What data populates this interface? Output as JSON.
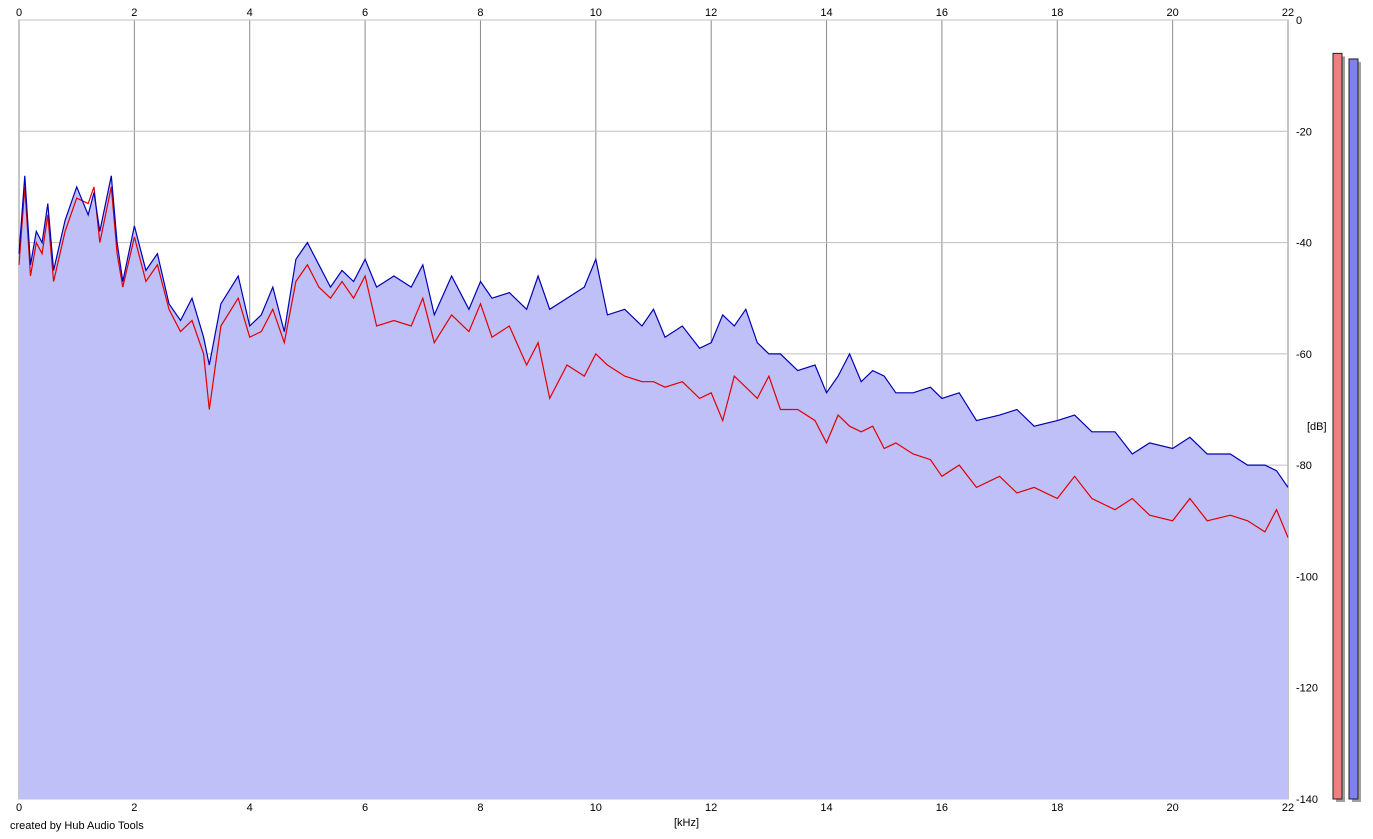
{
  "credit": "created by Hub Audio Tools",
  "chart_data": {
    "type": "area",
    "xlabel": "[kHz]",
    "ylabel": "[dB]",
    "xlim": [
      0,
      22
    ],
    "ylim": [
      -140,
      0
    ],
    "x_ticks": [
      0,
      2,
      4,
      6,
      8,
      10,
      12,
      14,
      16,
      18,
      20,
      22
    ],
    "y_ticks": [
      0,
      -20,
      -40,
      -60,
      -80,
      -100,
      -120,
      -140
    ],
    "grid": true,
    "series": [
      {
        "color": "#0000b4",
        "fill": "#c0c0f8",
        "x": [
          0,
          0.1,
          0.2,
          0.3,
          0.4,
          0.5,
          0.6,
          0.8,
          1.0,
          1.2,
          1.3,
          1.4,
          1.6,
          1.7,
          1.8,
          2.0,
          2.2,
          2.4,
          2.6,
          2.8,
          3.0,
          3.2,
          3.3,
          3.5,
          3.8,
          4.0,
          4.2,
          4.4,
          4.6,
          4.8,
          5.0,
          5.2,
          5.4,
          5.6,
          5.8,
          6.0,
          6.2,
          6.5,
          6.8,
          7.0,
          7.2,
          7.5,
          7.8,
          8.0,
          8.2,
          8.5,
          8.8,
          9.0,
          9.2,
          9.5,
          9.8,
          10.0,
          10.2,
          10.5,
          10.8,
          11.0,
          11.2,
          11.5,
          11.8,
          12.0,
          12.2,
          12.4,
          12.6,
          12.8,
          13.0,
          13.2,
          13.5,
          13.8,
          14.0,
          14.2,
          14.4,
          14.6,
          14.8,
          15.0,
          15.2,
          15.5,
          15.8,
          16.0,
          16.3,
          16.6,
          17.0,
          17.3,
          17.6,
          18.0,
          18.3,
          18.6,
          19.0,
          19.3,
          19.6,
          20.0,
          20.3,
          20.6,
          21.0,
          21.3,
          21.6,
          21.8,
          22.0
        ],
        "values": [
          -42,
          -28,
          -44,
          -38,
          -40,
          -33,
          -45,
          -36,
          -30,
          -35,
          -31,
          -38,
          -28,
          -40,
          -47,
          -37,
          -45,
          -42,
          -51,
          -54,
          -50,
          -57,
          -62,
          -51,
          -46,
          -55,
          -53,
          -48,
          -56,
          -43,
          -40,
          -44,
          -48,
          -45,
          -47,
          -43,
          -48,
          -46,
          -48,
          -44,
          -53,
          -46,
          -52,
          -47,
          -50,
          -49,
          -52,
          -46,
          -52,
          -50,
          -48,
          -43,
          -53,
          -52,
          -55,
          -52,
          -57,
          -55,
          -59,
          -58,
          -53,
          -55,
          -52,
          -58,
          -60,
          -60,
          -63,
          -62,
          -67,
          -64,
          -60,
          -65,
          -63,
          -64,
          -67,
          -67,
          -66,
          -68,
          -67,
          -72,
          -71,
          -70,
          -73,
          -72,
          -71,
          -74,
          -74,
          -78,
          -76,
          -77,
          -75,
          -78,
          -78,
          -80,
          -80,
          -81,
          -84
        ]
      },
      {
        "color": "#e00000",
        "x": [
          0,
          0.1,
          0.2,
          0.3,
          0.4,
          0.5,
          0.6,
          0.8,
          1.0,
          1.2,
          1.3,
          1.4,
          1.6,
          1.7,
          1.8,
          2.0,
          2.2,
          2.4,
          2.6,
          2.8,
          3.0,
          3.2,
          3.3,
          3.5,
          3.8,
          4.0,
          4.2,
          4.4,
          4.6,
          4.8,
          5.0,
          5.2,
          5.4,
          5.6,
          5.8,
          6.0,
          6.2,
          6.5,
          6.8,
          7.0,
          7.2,
          7.5,
          7.8,
          8.0,
          8.2,
          8.5,
          8.8,
          9.0,
          9.2,
          9.5,
          9.8,
          10.0,
          10.2,
          10.5,
          10.8,
          11.0,
          11.2,
          11.5,
          11.8,
          12.0,
          12.2,
          12.4,
          12.6,
          12.8,
          13.0,
          13.2,
          13.5,
          13.8,
          14.0,
          14.2,
          14.4,
          14.6,
          14.8,
          15.0,
          15.2,
          15.5,
          15.8,
          16.0,
          16.3,
          16.6,
          17.0,
          17.3,
          17.6,
          18.0,
          18.3,
          18.6,
          19.0,
          19.3,
          19.6,
          20.0,
          20.3,
          20.6,
          21.0,
          21.3,
          21.6,
          21.8,
          22.0
        ],
        "values": [
          -44,
          -30,
          -46,
          -40,
          -42,
          -35,
          -47,
          -38,
          -32,
          -33,
          -30,
          -40,
          -30,
          -42,
          -48,
          -39,
          -47,
          -44,
          -52,
          -56,
          -54,
          -60,
          -70,
          -55,
          -50,
          -57,
          -56,
          -52,
          -58,
          -47,
          -44,
          -48,
          -50,
          -47,
          -50,
          -46,
          -55,
          -54,
          -55,
          -50,
          -58,
          -53,
          -56,
          -51,
          -57,
          -55,
          -62,
          -58,
          -68,
          -62,
          -64,
          -60,
          -62,
          -64,
          -65,
          -65,
          -66,
          -65,
          -68,
          -67,
          -72,
          -64,
          -66,
          -68,
          -64,
          -70,
          -70,
          -72,
          -76,
          -71,
          -73,
          -74,
          -73,
          -77,
          -76,
          -78,
          -79,
          -82,
          -80,
          -84,
          -82,
          -85,
          -84,
          -86,
          -82,
          -86,
          -88,
          -86,
          -89,
          -90,
          -86,
          -90,
          -89,
          -90,
          -92,
          -88,
          -93
        ]
      }
    ],
    "level_meters": [
      {
        "color": "#f08080",
        "value_db": -6
      },
      {
        "color": "#8080f0",
        "value_db": -7
      }
    ]
  }
}
